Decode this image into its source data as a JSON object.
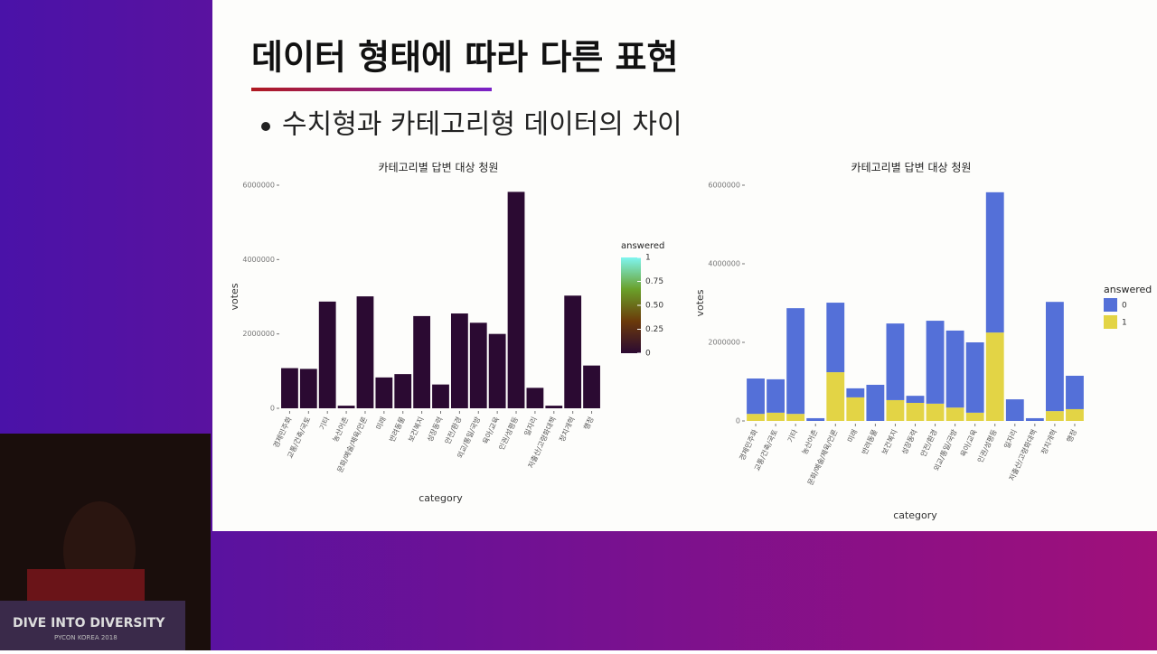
{
  "slide": {
    "title": "데이터 형태에 따라 다른 표현",
    "bullet": "수치형과 카테고리형 데이터의 차이"
  },
  "banner": {
    "title": "DIVE INTO DIVERSITY",
    "subtitle": "PYCON KOREA 2018"
  },
  "chart_data": [
    {
      "type": "bar",
      "title": "카테고리별 답변 대상 청원",
      "xlabel": "category",
      "ylabel": "votes",
      "categories": [
        "경제민주화",
        "교통/건축/국토",
        "기타",
        "농산어촌",
        "문화/예술/체육/언론",
        "미래",
        "반려동물",
        "보건복지",
        "성장동력",
        "안전/환경",
        "외교/통일/국방",
        "육아/교육",
        "인권/성평등",
        "일자리",
        "저출산/고령화대책",
        "정치개혁",
        "행정"
      ],
      "values": [
        1080000,
        1060000,
        2870000,
        70000,
        3010000,
        830000,
        920000,
        2480000,
        640000,
        2550000,
        2300000,
        2000000,
        5820000,
        550000,
        70000,
        3030000,
        1150000
      ],
      "color": "#2b0a32",
      "ylim": [
        0,
        6000000
      ],
      "yticks": [
        0,
        2000000,
        4000000,
        6000000
      ],
      "legend_title": "answered",
      "colorbar_ticks": [
        0,
        0.25,
        {
          "value": 0.5,
          "label": "0.50"
        },
        0.75,
        1
      ],
      "colorbar_colors": [
        "#2b0a32",
        "#6b3a0a",
        "#6aa02a",
        "#7ff5f0"
      ]
    },
    {
      "type": "stacked_bar",
      "title": "카테고리별 답변 대상 청원",
      "xlabel": "category",
      "ylabel": "votes",
      "categories": [
        "경제민주화",
        "교통/건축/국토",
        "기타",
        "농산어촌",
        "문화/예술/체육/언론",
        "미래",
        "반려동물",
        "보건복지",
        "성장동력",
        "안전/환경",
        "외교/통일/국방",
        "육아/교육",
        "인권/성평등",
        "일자리",
        "저출산/고령화대책",
        "정치개혁",
        "행정"
      ],
      "series": [
        {
          "name": "0",
          "color": "#5470d8",
          "values": [
            900000,
            850000,
            2690000,
            70000,
            1770000,
            230000,
            920000,
            1950000,
            180000,
            2110000,
            1960000,
            1790000,
            3570000,
            550000,
            70000,
            2780000,
            850000
          ]
        },
        {
          "name": "1",
          "color": "#e3d445",
          "values": [
            180000,
            210000,
            180000,
            0,
            1240000,
            600000,
            0,
            530000,
            460000,
            440000,
            340000,
            210000,
            2250000,
            0,
            0,
            250000,
            300000
          ]
        }
      ],
      "ylim": [
        0,
        6000000
      ],
      "yticks": [
        0,
        2000000,
        4000000,
        6000000
      ],
      "legend_title": "answered"
    }
  ]
}
